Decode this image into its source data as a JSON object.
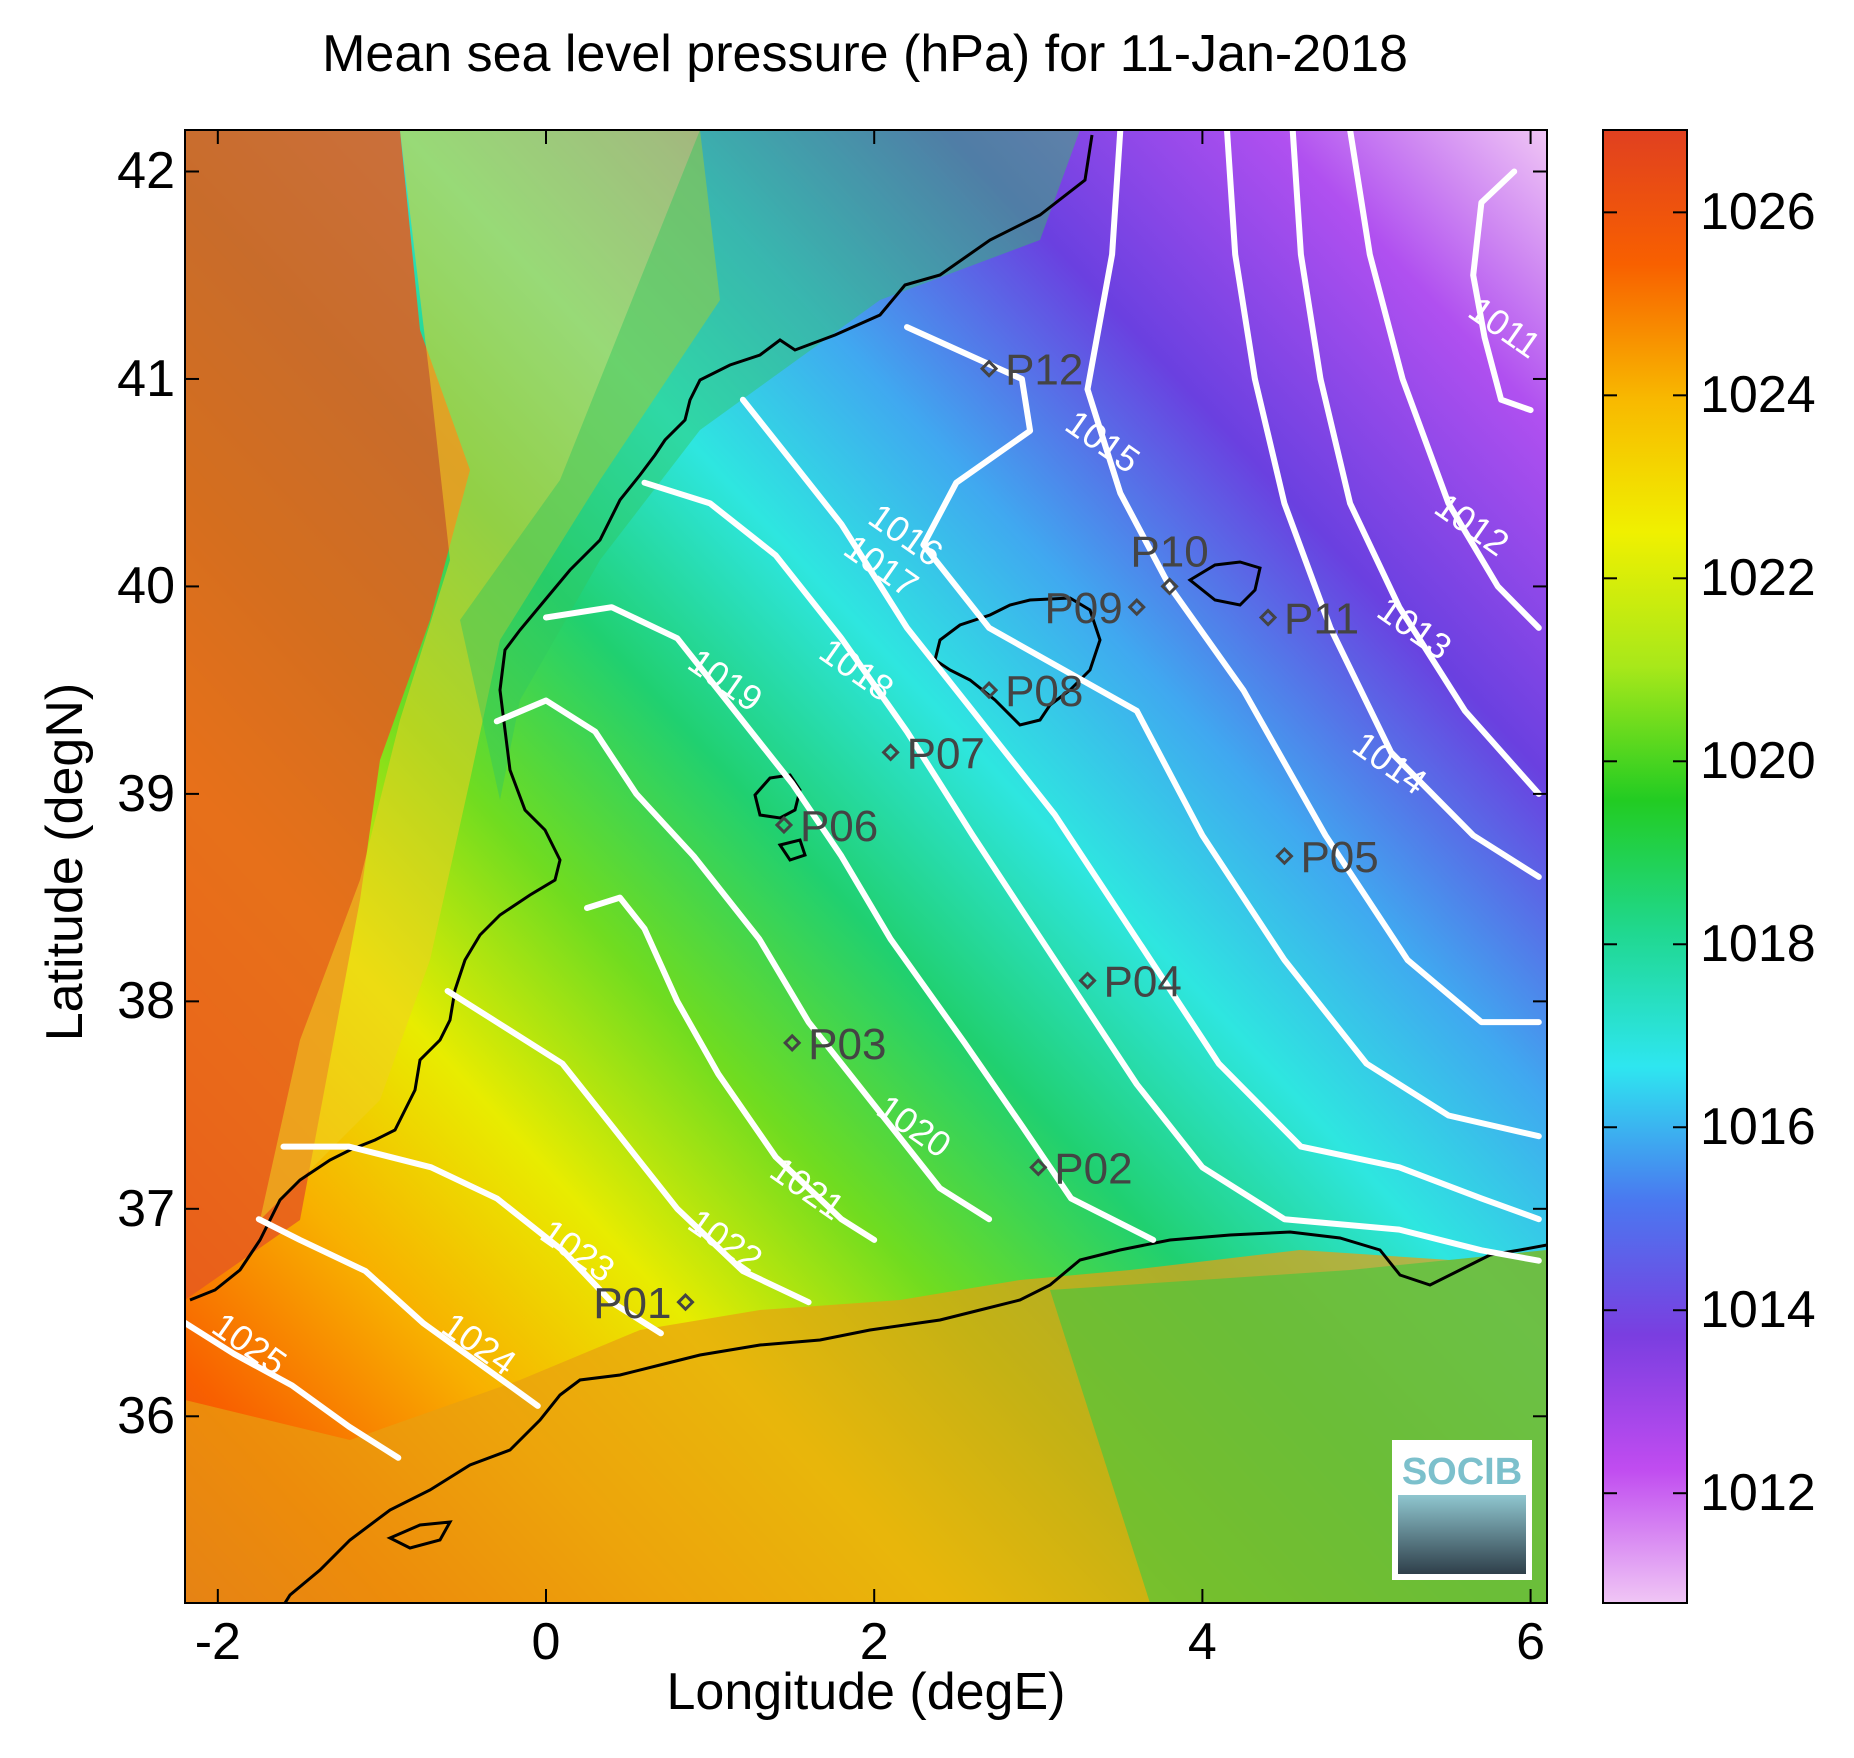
{
  "title": "Mean sea level pressure (hPa) for 11-Jan-2018",
  "map": {
    "xlabel": "Longitude (degE)",
    "ylabel": "Latitude (degN)",
    "lon_range": [
      -2.2,
      6.1
    ],
    "lat_range": [
      35.1,
      42.2
    ],
    "lon_ticks": [
      -2,
      0,
      2,
      4,
      6
    ],
    "lat_ticks": [
      36,
      37,
      38,
      39,
      40,
      41,
      42
    ],
    "contour_color": "#ffffff",
    "coastline_color": "#000000"
  },
  "colorbar": {
    "range": [
      1010.8,
      1026.9
    ],
    "ticks": [
      1012,
      1014,
      1016,
      1018,
      1020,
      1022,
      1024,
      1026
    ],
    "colors": [
      "#f0c6f5",
      "#c04cf0",
      "#7a3ee0",
      "#4a78f0",
      "#2ee6f0",
      "#20d890",
      "#22cc22",
      "#a8e81a",
      "#f0f000",
      "#f8b800",
      "#f86000",
      "#e04020"
    ]
  },
  "contours": [
    {
      "label": "1011",
      "label_lon": 5.8,
      "label_lat": 41.2,
      "points": [
        [
          5.9,
          42.0
        ],
        [
          5.7,
          41.85
        ],
        [
          5.65,
          41.5
        ],
        [
          5.72,
          41.2
        ],
        [
          5.82,
          40.9
        ],
        [
          6.0,
          40.85
        ]
      ]
    },
    {
      "label": "1012",
      "label_lon": 5.6,
      "label_lat": 40.25,
      "points": [
        [
          4.9,
          42.2
        ],
        [
          5.02,
          41.6
        ],
        [
          5.22,
          41.0
        ],
        [
          5.5,
          40.4
        ],
        [
          5.8,
          40.0
        ],
        [
          6.05,
          39.8
        ]
      ]
    },
    {
      "label": "1013",
      "label_lon": 5.25,
      "label_lat": 39.75,
      "points": [
        [
          4.55,
          42.2
        ],
        [
          4.6,
          41.6
        ],
        [
          4.72,
          41.0
        ],
        [
          4.9,
          40.4
        ],
        [
          5.2,
          39.9
        ],
        [
          5.6,
          39.4
        ],
        [
          6.05,
          39.0
        ]
      ]
    },
    {
      "label": "1014",
      "label_lon": 5.1,
      "label_lat": 39.1,
      "points": [
        [
          4.15,
          42.2
        ],
        [
          4.2,
          41.6
        ],
        [
          4.32,
          41.0
        ],
        [
          4.5,
          40.4
        ],
        [
          4.78,
          39.8
        ],
        [
          5.15,
          39.2
        ],
        [
          5.65,
          38.8
        ],
        [
          6.05,
          38.6
        ]
      ]
    },
    {
      "label": "1015",
      "label_lon": 3.35,
      "label_lat": 40.65,
      "points": [
        [
          3.5,
          42.2
        ],
        [
          3.45,
          41.6
        ],
        [
          3.3,
          40.95
        ],
        [
          3.5,
          40.45
        ],
        [
          3.8,
          40.0
        ],
        [
          4.25,
          39.5
        ],
        [
          4.75,
          38.8
        ],
        [
          5.25,
          38.2
        ],
        [
          5.7,
          37.9
        ],
        [
          6.05,
          37.9
        ]
      ]
    },
    {
      "label": "1016",
      "label_lon": 2.15,
      "label_lat": 40.2,
      "points": [
        [
          2.2,
          41.25
        ],
        [
          2.9,
          41.0
        ],
        [
          2.95,
          40.75
        ],
        [
          2.5,
          40.5
        ],
        [
          2.3,
          40.2
        ],
        [
          2.7,
          39.8
        ],
        [
          3.6,
          39.4
        ],
        [
          4.0,
          38.8
        ],
        [
          4.5,
          38.2
        ],
        [
          5.0,
          37.7
        ],
        [
          5.5,
          37.45
        ],
        [
          6.05,
          37.35
        ]
      ]
    },
    {
      "label": "1017",
      "label_lon": 2.0,
      "label_lat": 40.05,
      "points": [
        [
          1.2,
          40.9
        ],
        [
          1.5,
          40.6
        ],
        [
          1.8,
          40.3
        ],
        [
          2.2,
          39.8
        ],
        [
          2.6,
          39.4
        ],
        [
          3.1,
          38.9
        ],
        [
          3.6,
          38.3
        ],
        [
          4.1,
          37.7
        ],
        [
          4.6,
          37.3
        ],
        [
          5.2,
          37.2
        ],
        [
          5.7,
          37.05
        ],
        [
          6.05,
          36.95
        ]
      ]
    },
    {
      "label": "1018",
      "label_lon": 1.85,
      "label_lat": 39.55,
      "points": [
        [
          0.6,
          40.5
        ],
        [
          1.0,
          40.4
        ],
        [
          1.4,
          40.15
        ],
        [
          1.8,
          39.75
        ],
        [
          2.2,
          39.3
        ],
        [
          2.6,
          38.8
        ],
        [
          3.1,
          38.2
        ],
        [
          3.6,
          37.6
        ],
        [
          4.0,
          37.2
        ],
        [
          4.5,
          36.95
        ],
        [
          5.2,
          36.9
        ],
        [
          5.7,
          36.8
        ],
        [
          6.05,
          36.75
        ]
      ]
    },
    {
      "label": "1019",
      "label_lon": 1.05,
      "label_lat": 39.5,
      "points": [
        [
          0.0,
          39.85
        ],
        [
          0.4,
          39.9
        ],
        [
          0.8,
          39.75
        ],
        [
          1.1,
          39.45
        ],
        [
          1.5,
          39.05
        ],
        [
          1.8,
          38.7
        ],
        [
          2.1,
          38.3
        ],
        [
          2.55,
          37.8
        ],
        [
          2.9,
          37.4
        ],
        [
          3.2,
          37.05
        ],
        [
          3.7,
          36.85
        ]
      ]
    },
    {
      "label": "1020",
      "label_lon": 2.2,
      "label_lat": 37.35,
      "points": [
        [
          -0.3,
          39.35
        ],
        [
          0.0,
          39.45
        ],
        [
          0.3,
          39.3
        ],
        [
          0.55,
          39.0
        ],
        [
          0.9,
          38.7
        ],
        [
          1.3,
          38.3
        ],
        [
          1.6,
          37.9
        ],
        [
          2.0,
          37.5
        ],
        [
          2.4,
          37.1
        ],
        [
          2.7,
          36.95
        ]
      ]
    },
    {
      "label": "1021",
      "label_lon": 1.55,
      "label_lat": 37.05,
      "points": [
        [
          0.25,
          38.45
        ],
        [
          0.45,
          38.5
        ],
        [
          0.6,
          38.35
        ],
        [
          0.8,
          38.0
        ],
        [
          1.05,
          37.65
        ],
        [
          1.4,
          37.25
        ],
        [
          1.8,
          36.95
        ],
        [
          2.0,
          36.85
        ]
      ]
    },
    {
      "label": "1022",
      "label_lon": 1.05,
      "label_lat": 36.8,
      "points": [
        [
          -0.6,
          38.05
        ],
        [
          -0.3,
          37.9
        ],
        [
          0.1,
          37.7
        ],
        [
          0.4,
          37.4
        ],
        [
          0.8,
          37.0
        ],
        [
          1.2,
          36.7
        ],
        [
          1.6,
          36.55
        ]
      ]
    },
    {
      "label": "1023",
      "label_lon": 0.15,
      "label_lat": 36.75,
      "points": [
        [
          -1.6,
          37.3
        ],
        [
          -1.2,
          37.3
        ],
        [
          -0.7,
          37.2
        ],
        [
          -0.3,
          37.05
        ],
        [
          0.1,
          36.8
        ],
        [
          0.4,
          36.55
        ],
        [
          0.7,
          36.4
        ]
      ]
    },
    {
      "label": "1024",
      "label_lon": -0.45,
      "label_lat": 36.3,
      "points": [
        [
          -1.75,
          36.95
        ],
        [
          -1.5,
          36.85
        ],
        [
          -1.1,
          36.7
        ],
        [
          -0.75,
          36.45
        ],
        [
          -0.4,
          36.25
        ],
        [
          -0.05,
          36.05
        ]
      ]
    },
    {
      "label": "1025",
      "label_lon": -1.85,
      "label_lat": 36.3,
      "points": [
        [
          -2.2,
          36.45
        ],
        [
          -1.9,
          36.3
        ],
        [
          -1.55,
          36.15
        ],
        [
          -1.2,
          35.95
        ],
        [
          -0.9,
          35.8
        ]
      ]
    }
  ],
  "stations": [
    {
      "name": "P01",
      "lon": 0.85,
      "lat": 36.55,
      "side": "left"
    },
    {
      "name": "P02",
      "lon": 3.0,
      "lat": 37.2,
      "side": "right"
    },
    {
      "name": "P03",
      "lon": 1.5,
      "lat": 37.8,
      "side": "right"
    },
    {
      "name": "P04",
      "lon": 3.3,
      "lat": 38.1,
      "side": "right"
    },
    {
      "name": "P05",
      "lon": 4.5,
      "lat": 38.7,
      "side": "right"
    },
    {
      "name": "P06",
      "lon": 1.45,
      "lat": 38.85,
      "side": "right"
    },
    {
      "name": "P07",
      "lon": 2.1,
      "lat": 39.2,
      "side": "right"
    },
    {
      "name": "P08",
      "lon": 2.7,
      "lat": 39.5,
      "side": "right"
    },
    {
      "name": "P09",
      "lon": 3.6,
      "lat": 39.9,
      "side": "left"
    },
    {
      "name": "P10",
      "lon": 3.8,
      "lat": 40.0,
      "side": "above"
    },
    {
      "name": "P11",
      "lon": 4.4,
      "lat": 39.85,
      "side": "right"
    },
    {
      "name": "P12",
      "lon": 2.7,
      "lat": 41.05,
      "side": "right"
    }
  ],
  "logo": {
    "text": "SOCIB"
  }
}
